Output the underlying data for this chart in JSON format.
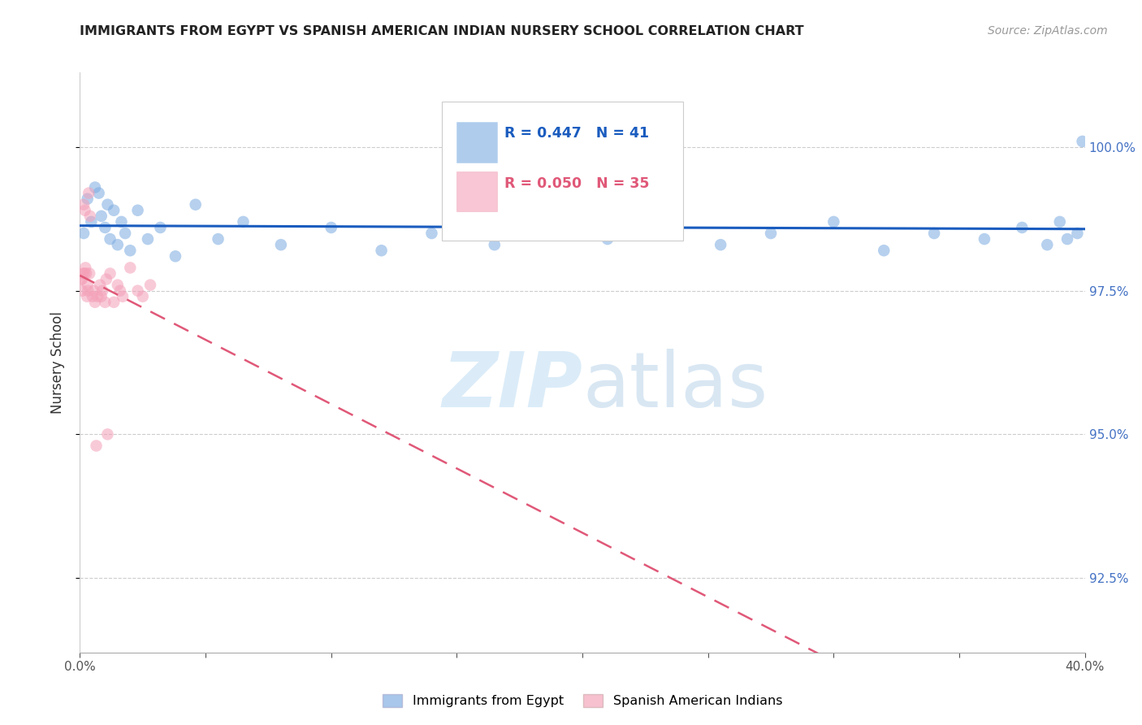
{
  "title": "IMMIGRANTS FROM EGYPT VS SPANISH AMERICAN INDIAN NURSERY SCHOOL CORRELATION CHART",
  "source": "Source: ZipAtlas.com",
  "ylabel": "Nursery School",
  "y_ticks": [
    92.5,
    95.0,
    97.5,
    100.0
  ],
  "legend_blue_R": "R = 0.447",
  "legend_blue_N": "N = 41",
  "legend_pink_R": "R = 0.050",
  "legend_pink_N": "N = 35",
  "legend_label_blue": "Immigrants from Egypt",
  "legend_label_pink": "Spanish American Indians",
  "blue_dot_color": "#7aaae0",
  "pink_dot_color": "#f4a0b8",
  "blue_line_color": "#1a5cbf",
  "pink_line_color": "#e05878",
  "right_axis_color": "#4472c4",
  "xlim_min": 0,
  "xlim_max": 40,
  "ylim_min": 91.2,
  "ylim_max": 101.3,
  "blue_x": [
    0.15,
    0.3,
    0.45,
    0.6,
    0.75,
    0.85,
    1.0,
    1.1,
    1.2,
    1.35,
    1.5,
    1.65,
    1.8,
    2.0,
    2.3,
    2.7,
    3.2,
    3.8,
    4.6,
    5.5,
    6.5,
    8.0,
    10.0,
    12.0,
    14.0,
    16.5,
    19.0,
    21.0,
    23.0,
    25.5,
    27.5,
    30.0,
    32.0,
    34.0,
    36.0,
    37.5,
    38.5,
    39.0,
    39.3,
    39.7,
    39.9
  ],
  "blue_y": [
    98.5,
    99.1,
    98.7,
    99.3,
    99.2,
    98.8,
    98.6,
    99.0,
    98.4,
    98.9,
    98.3,
    98.7,
    98.5,
    98.2,
    98.9,
    98.4,
    98.6,
    98.1,
    99.0,
    98.4,
    98.7,
    98.3,
    98.6,
    98.2,
    98.5,
    98.3,
    98.6,
    98.4,
    98.7,
    98.3,
    98.5,
    98.7,
    98.2,
    98.5,
    98.4,
    98.6,
    98.3,
    98.7,
    98.4,
    98.5,
    100.1
  ],
  "pink_x": [
    0.05,
    0.1,
    0.15,
    0.2,
    0.25,
    0.3,
    0.35,
    0.4,
    0.5,
    0.55,
    0.6,
    0.7,
    0.8,
    0.9,
    1.0,
    1.1,
    1.2,
    1.5,
    1.7,
    2.0,
    2.3,
    2.8,
    0.08,
    0.18,
    0.28,
    0.38,
    0.65,
    0.85,
    1.05,
    1.35,
    0.12,
    1.6,
    2.5,
    0.22,
    0.32
  ],
  "pink_y": [
    97.7,
    97.5,
    99.0,
    98.9,
    97.8,
    97.6,
    99.2,
    98.8,
    97.4,
    97.5,
    97.3,
    97.4,
    97.6,
    97.5,
    97.3,
    95.0,
    97.8,
    97.6,
    97.4,
    97.9,
    97.5,
    97.6,
    97.7,
    97.8,
    97.4,
    97.8,
    94.8,
    97.4,
    97.7,
    97.3,
    97.8,
    97.5,
    97.4,
    97.9,
    97.5
  ]
}
